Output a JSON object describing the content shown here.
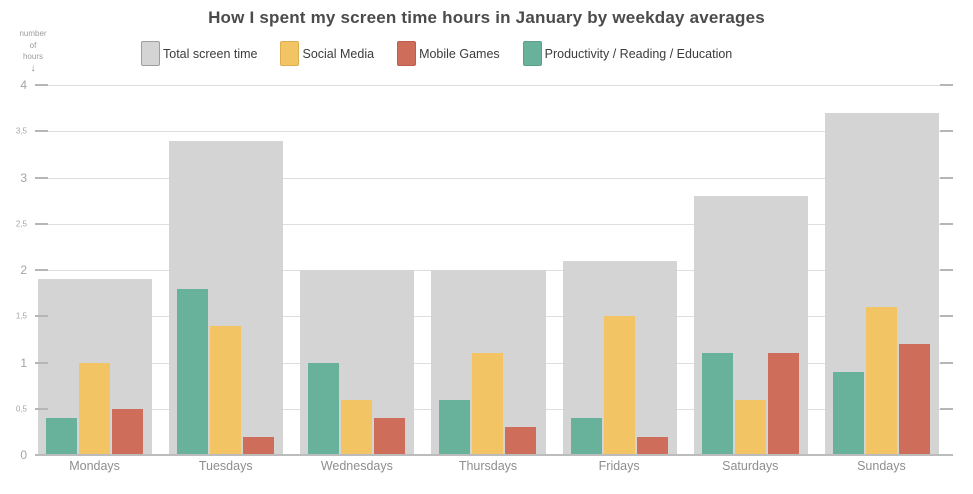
{
  "title": "How I spent my screen time hours in January by weekday averages",
  "y_axis_caption": {
    "lines": [
      "number",
      "of",
      "hours"
    ],
    "arrow": "↓"
  },
  "legend": [
    {
      "label": "Total screen time",
      "color": "#d4d4d5",
      "border": "#9e9e9e"
    },
    {
      "label": "Social Media",
      "color": "#f3c464",
      "border": "#dcae52"
    },
    {
      "label": "Mobile Games",
      "color": "#cf6d5b",
      "border": "#bb5f4e"
    },
    {
      "label": "Productivity / Reading / Education",
      "color": "#68b19a",
      "border": "#5aa188"
    }
  ],
  "chart_data": {
    "type": "bar",
    "title": "How I spent my screen time hours in January by weekday averages",
    "categories": [
      "Mondays",
      "Tuesdays",
      "Wednesdays",
      "Thursdays",
      "Fridays",
      "Saturdays",
      "Sundays"
    ],
    "series": [
      {
        "name": "Total screen time",
        "color": "#d4d4d5",
        "role": "background",
        "values": [
          1.9,
          3.4,
          2.0,
          2.0,
          2.1,
          2.8,
          3.7
        ]
      },
      {
        "name": "Social Media",
        "color": "#f3c464",
        "role": "overlay",
        "values": [
          1.0,
          1.4,
          0.6,
          1.1,
          1.5,
          0.6,
          1.6
        ]
      },
      {
        "name": "Mobile Games",
        "color": "#cf6d5b",
        "role": "overlay",
        "values": [
          0.5,
          0.2,
          0.4,
          0.3,
          0.2,
          1.1,
          1.2
        ]
      },
      {
        "name": "Productivity / Reading / Education",
        "color": "#68b19a",
        "role": "overlay",
        "values": [
          0.4,
          1.8,
          1.0,
          0.6,
          0.4,
          1.1,
          0.9
        ]
      }
    ],
    "overlay_left_to_right": [
      "Productivity / Reading / Education",
      "Social Media",
      "Mobile Games"
    ],
    "xlabel": "",
    "ylabel": "number of hours",
    "ylim": [
      0,
      4
    ],
    "grid": true,
    "legend_position": "top",
    "yticks": [
      {
        "value": 0,
        "label": "0",
        "major": true
      },
      {
        "value": 0.5,
        "label": "0,5",
        "major": false
      },
      {
        "value": 1,
        "label": "1",
        "major": true
      },
      {
        "value": 1.5,
        "label": "1,5",
        "major": false
      },
      {
        "value": 2,
        "label": "2",
        "major": true
      },
      {
        "value": 2.5,
        "label": "2,5",
        "major": false
      },
      {
        "value": 3,
        "label": "3",
        "major": true
      },
      {
        "value": 3.5,
        "label": "3,5",
        "major": false
      },
      {
        "value": 4,
        "label": "4",
        "major": true
      }
    ]
  }
}
